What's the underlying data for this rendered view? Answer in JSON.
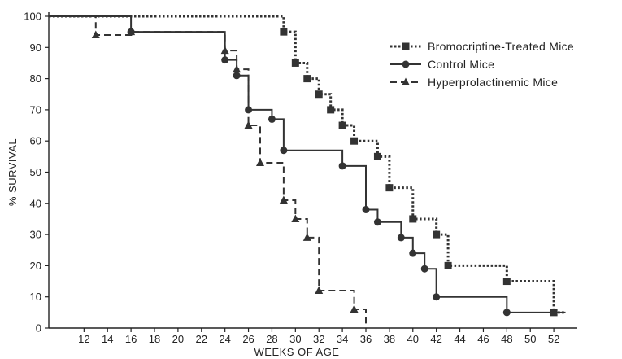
{
  "chart_data": {
    "type": "line",
    "step": true,
    "xlabel": "WEEKS OF AGE",
    "ylabel": "% SURVIVAL",
    "xlim": [
      9,
      54
    ],
    "ylim": [
      0,
      100
    ],
    "x_ticks": [
      12,
      14,
      16,
      18,
      20,
      22,
      24,
      26,
      28,
      30,
      32,
      34,
      36,
      38,
      40,
      42,
      44,
      46,
      48,
      50,
      52
    ],
    "y_ticks": [
      0,
      10,
      20,
      30,
      40,
      50,
      60,
      70,
      80,
      90,
      100
    ],
    "grid": false,
    "legend_position": "top-right",
    "series": [
      {
        "name": "Bromocriptine-Treated Mice",
        "color": "#333333",
        "line_style": "dotted",
        "marker": "square",
        "start": 100,
        "end_x": 53,
        "points": [
          [
            29,
            95
          ],
          [
            30,
            85
          ],
          [
            31,
            80
          ],
          [
            32,
            75
          ],
          [
            33,
            70
          ],
          [
            34,
            65
          ],
          [
            35,
            60
          ],
          [
            37,
            55
          ],
          [
            38,
            45
          ],
          [
            40,
            35
          ],
          [
            42,
            30
          ],
          [
            43,
            20
          ],
          [
            48,
            15
          ],
          [
            52,
            5
          ]
        ]
      },
      {
        "name": "Control Mice",
        "color": "#333333",
        "line_style": "solid",
        "marker": "circle",
        "start": 100,
        "end_x": 53,
        "points": [
          [
            16,
            95
          ],
          [
            24,
            86
          ],
          [
            25,
            81
          ],
          [
            26,
            70
          ],
          [
            28,
            67
          ],
          [
            29,
            57
          ],
          [
            34,
            52
          ],
          [
            36,
            38
          ],
          [
            37,
            34
          ],
          [
            39,
            29
          ],
          [
            40,
            24
          ],
          [
            41,
            19
          ],
          [
            42,
            10
          ],
          [
            48,
            5
          ]
        ]
      },
      {
        "name": "Hyperprolactinemic Mice",
        "color": "#333333",
        "line_style": "dashed",
        "marker": "triangle",
        "start": 100,
        "end_x": 36,
        "points": [
          [
            13,
            94
          ],
          [
            16,
            95
          ],
          [
            24,
            89
          ],
          [
            25,
            83
          ],
          [
            26,
            65
          ],
          [
            27,
            53
          ],
          [
            29,
            41
          ],
          [
            30,
            35
          ],
          [
            31,
            29
          ],
          [
            32,
            12
          ],
          [
            35,
            6
          ],
          [
            36,
            0
          ]
        ]
      }
    ]
  }
}
